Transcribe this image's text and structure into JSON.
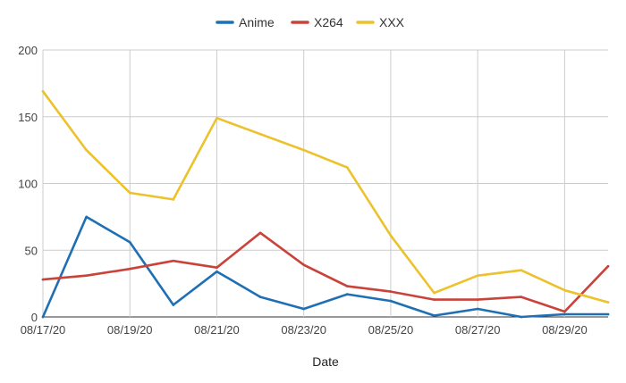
{
  "chart_data": {
    "type": "line",
    "xlabel": "Date",
    "ylabel": "",
    "ylim": [
      0,
      200
    ],
    "yticks": [
      0,
      50,
      100,
      150,
      200
    ],
    "grid": true,
    "legend_position": "top-center",
    "categories": [
      "08/17/20",
      "08/18/20",
      "08/19/20",
      "08/20/20",
      "08/21/20",
      "08/22/20",
      "08/23/20",
      "08/24/20",
      "08/25/20",
      "08/26/20",
      "08/27/20",
      "08/28/20",
      "08/29/20",
      "08/30/20"
    ],
    "x_tick_labels": [
      "08/17/20",
      "08/19/20",
      "08/21/20",
      "08/23/20",
      "08/25/20",
      "08/27/20",
      "08/29/20"
    ],
    "series": [
      {
        "name": "Anime",
        "color": "#1f6fb4",
        "values": [
          0,
          75,
          56,
          9,
          34,
          15,
          6,
          17,
          12,
          1,
          6,
          0,
          2,
          2
        ]
      },
      {
        "name": "X264",
        "color": "#c9433a",
        "values": [
          28,
          31,
          36,
          42,
          37,
          63,
          39,
          23,
          19,
          13,
          13,
          15,
          4,
          38
        ]
      },
      {
        "name": "XXX",
        "color": "#ecc22c",
        "values": [
          169,
          125,
          93,
          88,
          149,
          137,
          125,
          112,
          61,
          18,
          31,
          35,
          20,
          11
        ]
      }
    ]
  }
}
